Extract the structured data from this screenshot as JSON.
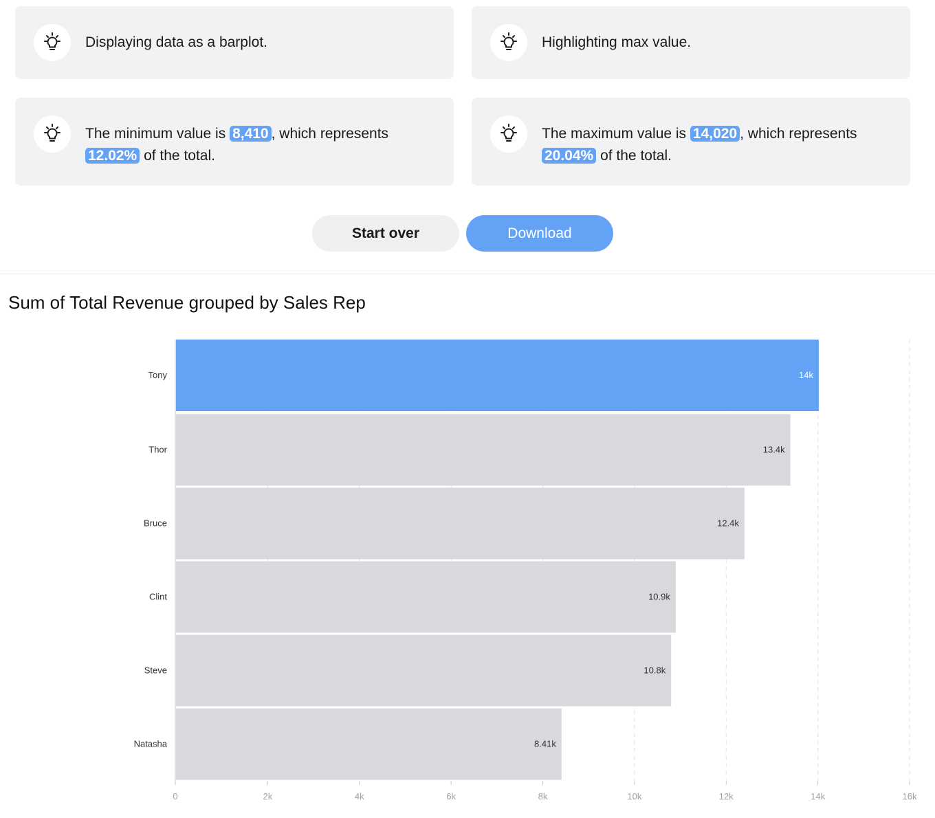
{
  "insights": [
    {
      "segments": [
        {
          "text": "Displaying data as a barplot."
        }
      ]
    },
    {
      "segments": [
        {
          "text": "Highlighting max value."
        }
      ]
    },
    {
      "segments": [
        {
          "text": "The minimum value is "
        },
        {
          "text": "8,410",
          "hl": true
        },
        {
          "text": ", which represents "
        },
        {
          "text": "12.02%",
          "hl": true
        },
        {
          "text": " of the total."
        }
      ]
    },
    {
      "segments": [
        {
          "text": "The maximum value is "
        },
        {
          "text": "14,020",
          "hl": true
        },
        {
          "text": ", which represents "
        },
        {
          "text": "20.04%",
          "hl": true
        },
        {
          "text": " of the total."
        }
      ]
    }
  ],
  "actions": {
    "start_over_label": "Start over",
    "download_label": "Download"
  },
  "colors": {
    "accent": "#64a2f6",
    "bar_default": "#d8d9dd",
    "card_bg": "#f2f2f4"
  },
  "icons": {
    "insight": "lightbulb-icon"
  },
  "chart_data": {
    "type": "bar",
    "orientation": "horizontal",
    "title": "Sum of Total Revenue grouped by Sales Rep",
    "xlabel": "",
    "ylabel": "",
    "categories": [
      "Tony",
      "Thor",
      "Bruce",
      "Clint",
      "Steve",
      "Natasha"
    ],
    "values": [
      14020,
      13400,
      12400,
      10900,
      10800,
      8410
    ],
    "data_labels": [
      "14k",
      "13.4k",
      "12.4k",
      "10.9k",
      "10.8k",
      "8.41k"
    ],
    "highlight_index": 0,
    "xlim": [
      0,
      16000
    ],
    "xticks": [
      0,
      2000,
      4000,
      6000,
      8000,
      10000,
      12000,
      14000,
      16000
    ],
    "xtick_labels": [
      "0",
      "2k",
      "4k",
      "6k",
      "8k",
      "10k",
      "12k",
      "14k",
      "16k"
    ],
    "grid": "vertical dashed"
  }
}
